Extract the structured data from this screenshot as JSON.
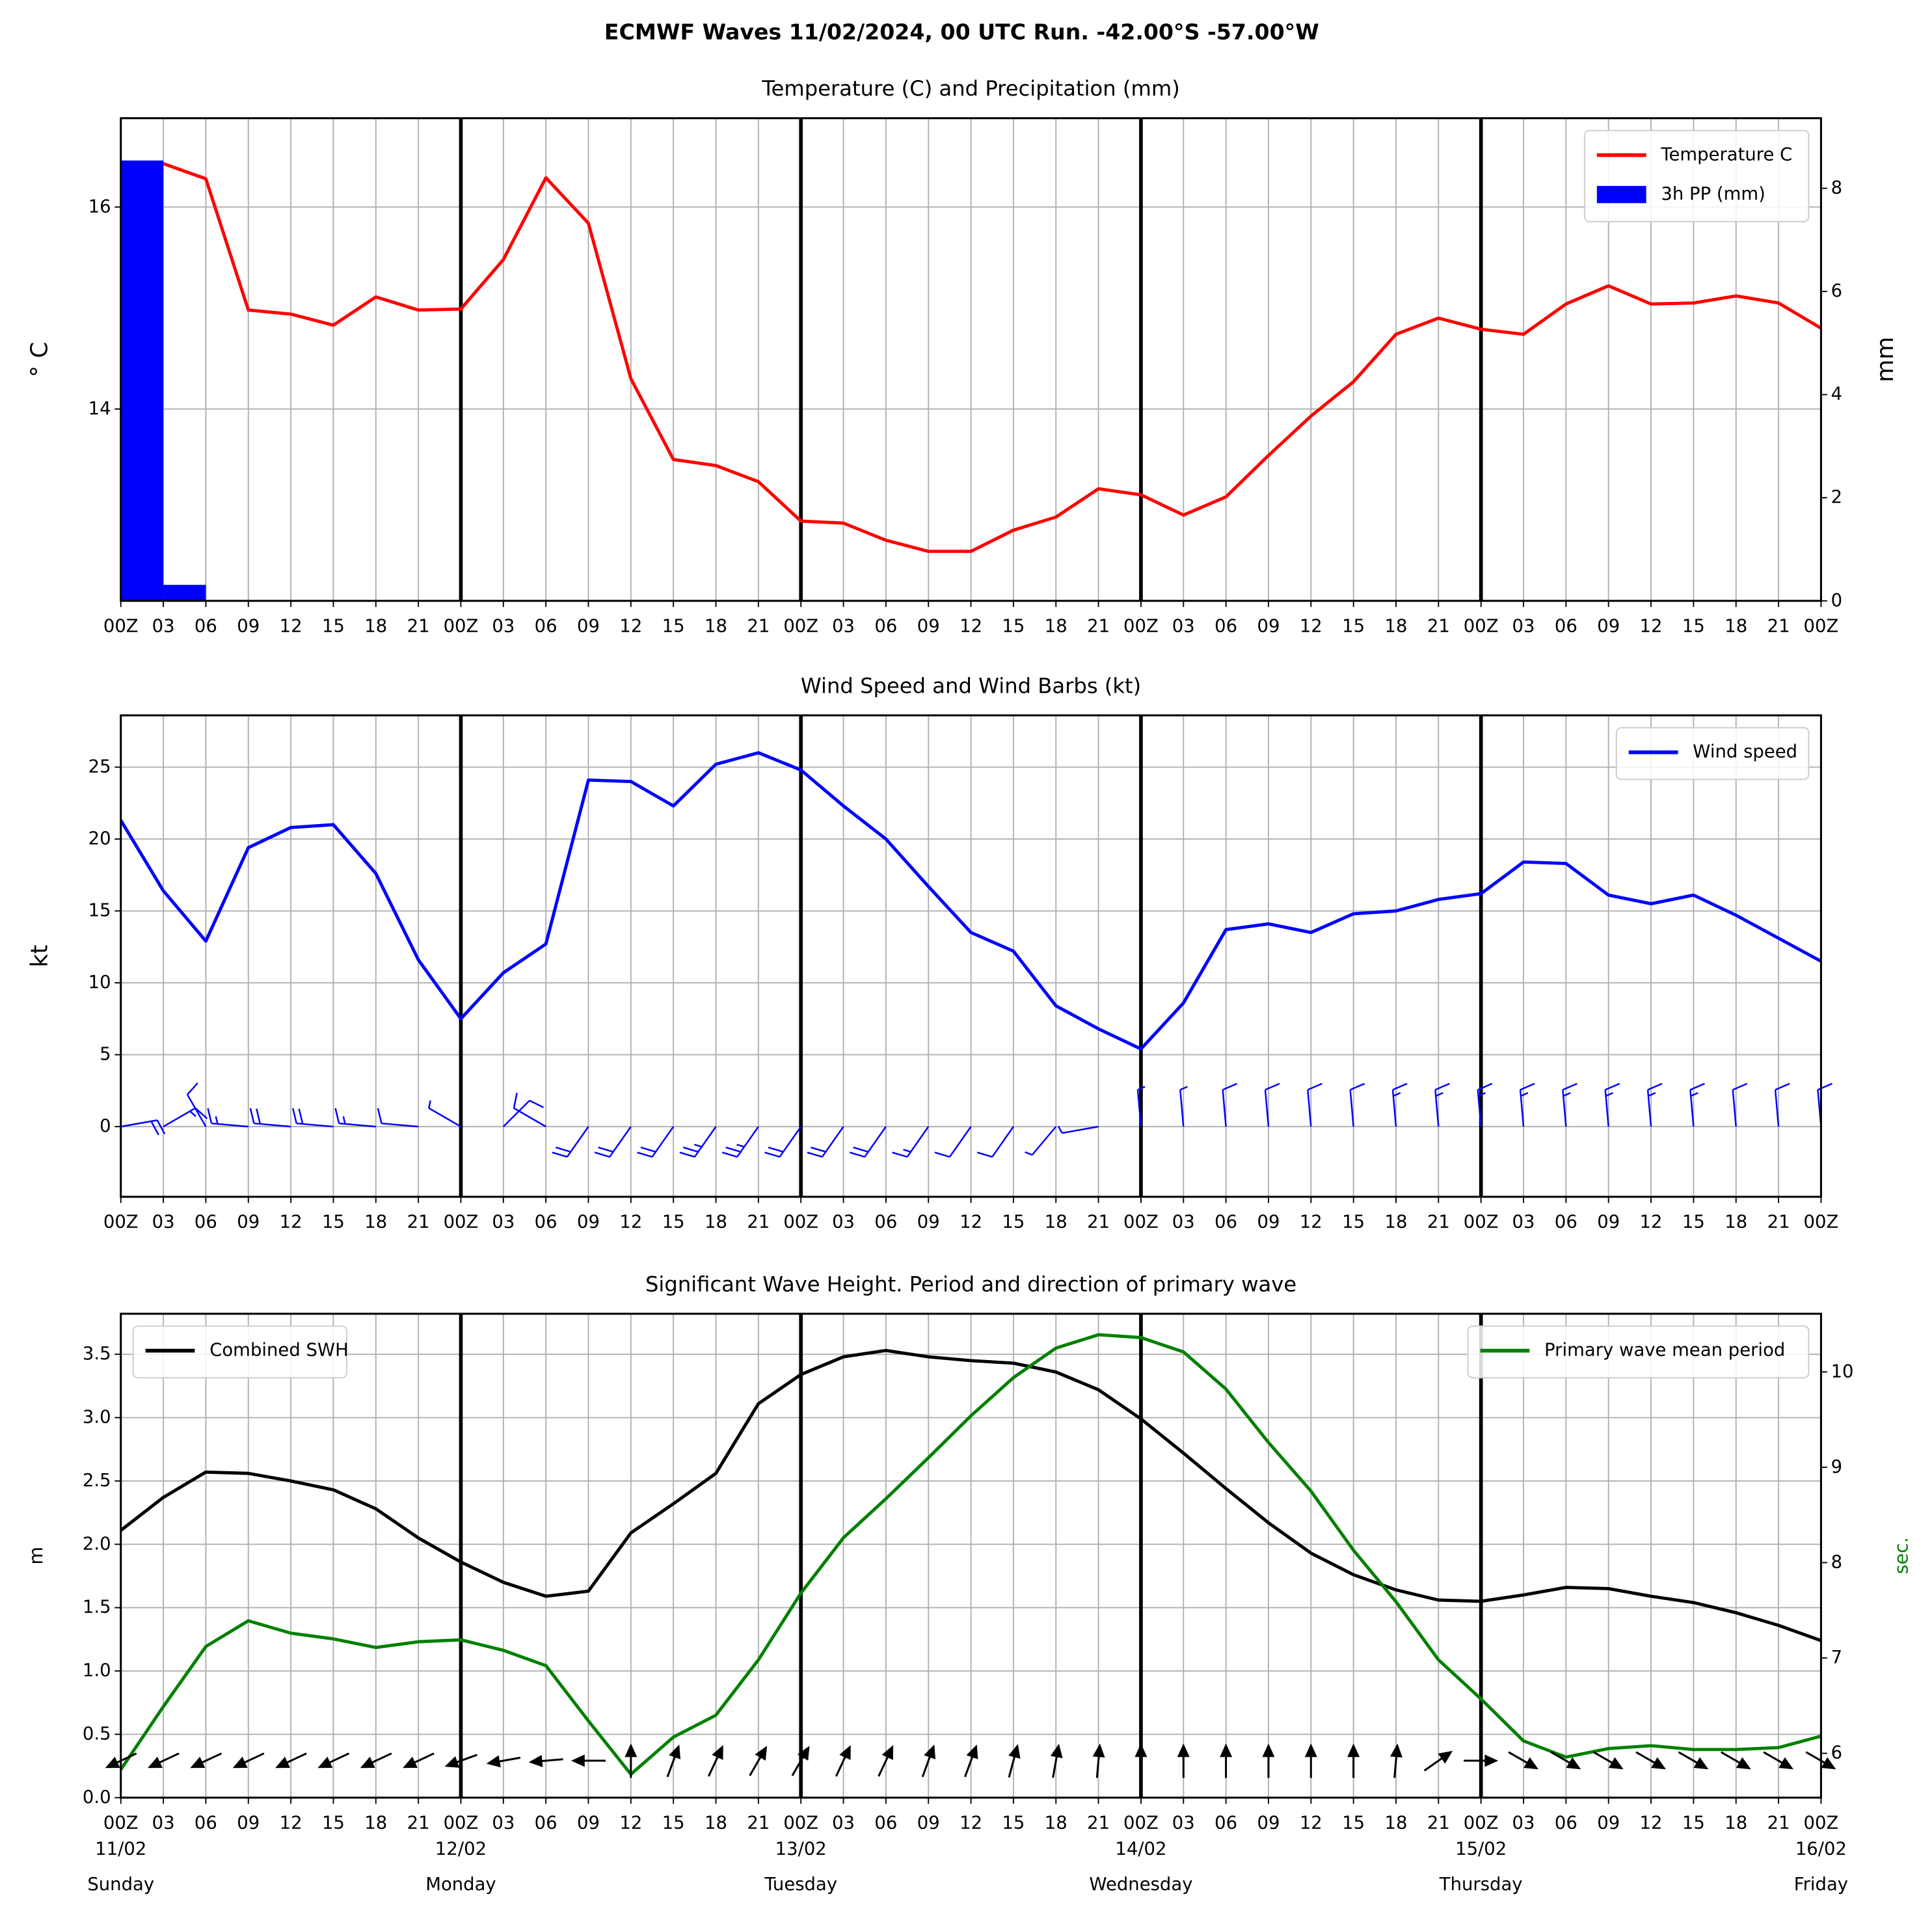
{
  "page_title": "ECMWF Waves 11/02/2024, 00 UTC Run. -42.00°S -57.00°W",
  "chart_data": [
    {
      "type": "line",
      "title": "Temperature (C) and Precipitation (mm)",
      "ylabel": "° C",
      "y2label": "mm",
      "categories": [
        "00Z",
        "03",
        "06",
        "09",
        "12",
        "15",
        "18",
        "21",
        "00Z",
        "03",
        "06",
        "09",
        "12",
        "15",
        "18",
        "21",
        "00Z",
        "03",
        "06",
        "09",
        "12",
        "15",
        "18",
        "21",
        "00Z",
        "03",
        "06",
        "09",
        "12",
        "15",
        "18",
        "21",
        "00Z",
        "03",
        "06",
        "09",
        "12",
        "15",
        "18",
        "21",
        "00Z"
      ],
      "ylim": [
        12.1,
        16.88
      ],
      "yticks": [
        14,
        16
      ],
      "y2lim": [
        0,
        9.36
      ],
      "y2ticks": [
        0,
        2,
        4,
        6,
        8
      ],
      "grid": true,
      "legend": "upper right",
      "series": [
        {
          "name": "Temperature C",
          "color": "#ff0000",
          "type": "line",
          "values": [
            16.34,
            16.43,
            16.28,
            14.98,
            14.94,
            14.83,
            15.11,
            14.98,
            14.99,
            15.48,
            16.29,
            15.84,
            14.3,
            13.5,
            13.44,
            13.28,
            12.89,
            12.87,
            12.7,
            12.59,
            12.59,
            12.8,
            12.93,
            13.21,
            13.15,
            12.95,
            13.13,
            13.54,
            13.93,
            14.27,
            14.74,
            14.9,
            14.79,
            14.74,
            15.04,
            15.22,
            15.04,
            15.05,
            15.12,
            15.05,
            14.8
          ]
        },
        {
          "name": "3h PP (mm)",
          "color": "#0000ff",
          "type": "bar",
          "axis": "y2",
          "values": [
            8.54,
            0.31,
            0,
            0,
            0,
            0,
            0,
            0,
            0,
            0,
            0,
            0,
            0,
            0,
            0,
            0,
            0,
            0,
            0,
            0,
            0,
            0,
            0,
            0,
            0,
            0,
            0,
            0,
            0,
            0,
            0,
            0,
            0,
            0,
            0,
            0,
            0,
            0,
            0,
            0,
            0
          ]
        }
      ]
    },
    {
      "type": "line",
      "title": "Wind Speed and Wind Barbs (kt)",
      "ylabel": "kt",
      "categories": [
        "00Z",
        "03",
        "06",
        "09",
        "12",
        "15",
        "18",
        "21",
        "00Z",
        "03",
        "06",
        "09",
        "12",
        "15",
        "18",
        "21",
        "00Z",
        "03",
        "06",
        "09",
        "12",
        "15",
        "18",
        "21",
        "00Z",
        "03",
        "06",
        "09",
        "12",
        "15",
        "18",
        "21",
        "00Z",
        "03",
        "06",
        "09",
        "12",
        "15",
        "18",
        "21",
        "00Z"
      ],
      "ylim": [
        -4.88,
        28.6
      ],
      "yticks": [
        0,
        5,
        10,
        15,
        20,
        25
      ],
      "grid": true,
      "legend": "upper right",
      "series": [
        {
          "name": "Wind speed",
          "color": "#0000ff",
          "type": "line",
          "values": [
            21.3,
            16.4,
            12.9,
            19.4,
            20.8,
            21.0,
            17.6,
            11.6,
            7.5,
            10.7,
            12.7,
            24.1,
            24.0,
            22.3,
            25.2,
            26.0,
            24.8,
            22.3,
            20.0,
            16.7,
            13.5,
            12.2,
            8.4,
            6.8,
            5.4,
            8.6,
            13.7,
            14.1,
            13.5,
            14.8,
            15.0,
            15.8,
            16.2,
            18.4,
            18.3,
            16.1,
            15.5,
            16.1,
            14.7,
            13.1,
            11.5
          ]
        }
      ],
      "barb_color": "#0000ff",
      "barb_directions": [
        80,
        60,
        330,
        275,
        275,
        275,
        275,
        275,
        300,
        45,
        300,
        215,
        215,
        215,
        215,
        215,
        215,
        215,
        215,
        215,
        215,
        215,
        220,
        260,
        355,
        355,
        355,
        355,
        355,
        355,
        355,
        355,
        355,
        355,
        355,
        355,
        355,
        355,
        355,
        355,
        355
      ]
    },
    {
      "type": "line",
      "title": "Significant Wave Height. Period and direction of primary wave",
      "ylabel": "m",
      "y2label": "sec.",
      "y2label_color": "#008000",
      "categories": [
        "00Z",
        "03",
        "06",
        "09",
        "12",
        "15",
        "18",
        "21",
        "00Z",
        "03",
        "06",
        "09",
        "12",
        "15",
        "18",
        "21",
        "00Z",
        "03",
        "06",
        "09",
        "12",
        "15",
        "18",
        "21",
        "00Z",
        "03",
        "06",
        "09",
        "12",
        "15",
        "18",
        "21",
        "00Z",
        "03",
        "06",
        "09",
        "12",
        "15",
        "18",
        "21",
        "00Z"
      ],
      "date_labels": [
        "11/02",
        null,
        null,
        null,
        null,
        null,
        null,
        null,
        "12/02",
        null,
        null,
        null,
        null,
        null,
        null,
        null,
        "13/02",
        null,
        null,
        null,
        null,
        null,
        null,
        null,
        "14/02",
        null,
        null,
        null,
        null,
        null,
        null,
        null,
        "15/02",
        null,
        null,
        null,
        null,
        null,
        null,
        null,
        "16/02"
      ],
      "weekday_labels": [
        "Sunday",
        null,
        null,
        null,
        null,
        null,
        null,
        null,
        "Monday",
        null,
        null,
        null,
        null,
        null,
        null,
        null,
        "Tuesday",
        null,
        null,
        null,
        null,
        null,
        null,
        null,
        "Wednesday",
        null,
        null,
        null,
        null,
        null,
        null,
        null,
        "Thursday",
        null,
        null,
        null,
        null,
        null,
        null,
        null,
        "Friday"
      ],
      "ylim": [
        0,
        3.82
      ],
      "yticks": [
        {
          "value": 0,
          "label": "0.0"
        },
        0.5,
        {
          "value": 1,
          "label": "1.0"
        },
        1.5,
        {
          "value": 2,
          "label": "2.0"
        },
        2.5,
        {
          "value": 3,
          "label": "3.0"
        },
        3.5
      ],
      "y2lim": [
        5.535,
        10.61
      ],
      "y2ticks": [
        6,
        7,
        8,
        9,
        10
      ],
      "grid": true,
      "series": [
        {
          "name": "Combined SWH",
          "color": "#000000",
          "type": "line",
          "legend": "upper left",
          "values": [
            2.11,
            2.37,
            2.57,
            2.56,
            2.5,
            2.43,
            2.28,
            2.05,
            1.86,
            1.7,
            1.59,
            1.63,
            2.09,
            2.32,
            2.56,
            3.11,
            3.34,
            3.48,
            3.53,
            3.48,
            3.45,
            3.43,
            3.36,
            3.22,
            2.99,
            2.72,
            2.44,
            2.17,
            1.93,
            1.76,
            1.64,
            1.56,
            1.55,
            1.6,
            1.66,
            1.65,
            1.59,
            1.54,
            1.46,
            1.36,
            1.24
          ]
        },
        {
          "name": "Primary wave mean period",
          "color": "#008000",
          "type": "line",
          "axis": "y2",
          "legend": "upper right",
          "values": [
            5.83,
            6.49,
            7.12,
            7.39,
            7.26,
            7.2,
            7.11,
            7.17,
            7.19,
            7.08,
            6.92,
            6.34,
            5.78,
            6.17,
            6.4,
            6.98,
            7.68,
            8.26,
            8.67,
            9.1,
            9.54,
            9.94,
            10.25,
            10.39,
            10.36,
            10.21,
            9.82,
            9.26,
            8.75,
            8.13,
            7.59,
            6.98,
            6.57,
            6.13,
            5.96,
            6.05,
            6.08,
            6.04,
            6.04,
            6.06,
            6.18
          ]
        }
      ],
      "arrow_color": "#000000",
      "wave_directions": [
        65,
        65,
        65,
        65,
        65,
        65,
        65,
        65,
        70,
        80,
        85,
        90,
        180,
        200,
        205,
        210,
        210,
        205,
        205,
        200,
        200,
        195,
        190,
        185,
        180,
        180,
        180,
        180,
        180,
        180,
        185,
        235,
        270,
        300,
        300,
        300,
        300,
        300,
        300,
        300,
        300
      ]
    }
  ]
}
